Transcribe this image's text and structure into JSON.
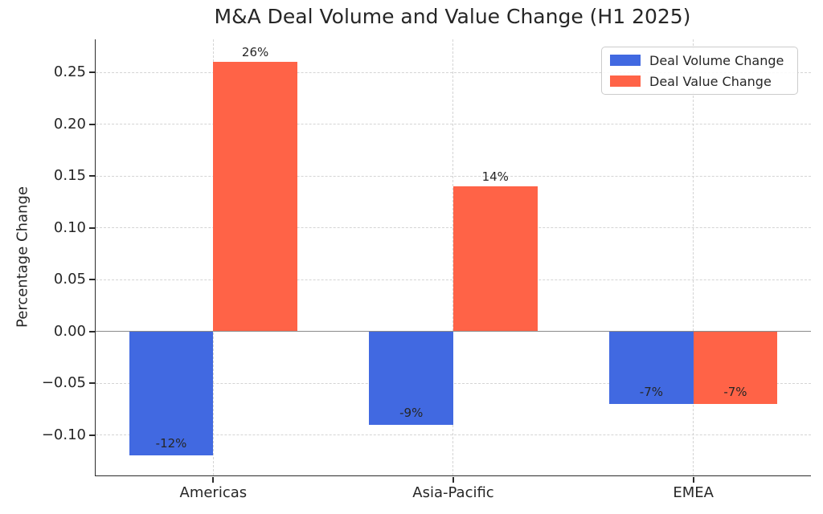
{
  "chart_data": {
    "type": "bar",
    "title": "M&A Deal Volume and Value Change (H1 2025)",
    "ylabel": "Percentage Change",
    "xlabel": "",
    "categories": [
      "Americas",
      "Asia-Pacific",
      "EMEA"
    ],
    "series": [
      {
        "name": "Deal Volume Change",
        "color": "#4169E1",
        "values": [
          -0.12,
          -0.09,
          -0.07
        ],
        "bar_labels": [
          "-12%",
          "-9%",
          "-7%"
        ]
      },
      {
        "name": "Deal Value Change",
        "color": "#FF6347",
        "values": [
          0.26,
          0.14,
          -0.07
        ],
        "bar_labels": [
          "26%",
          "14%",
          "-7%"
        ]
      }
    ],
    "yticks": {
      "values": [
        -0.1,
        -0.05,
        0,
        0.05,
        0.1,
        0.15,
        0.2,
        0.25
      ],
      "labels": [
        "−0.10",
        "−0.05",
        "0.00",
        "0.05",
        "0.10",
        "0.15",
        "0.20",
        "0.25"
      ]
    },
    "ylim": [
      -0.139,
      0.282
    ],
    "xlim": [
      -0.49,
      2.49
    ],
    "bar_width_ratio": 0.35,
    "grid": {
      "show": true,
      "style": "dashed",
      "axes": "both",
      "color": "#d4d4d4"
    },
    "zero_line_color": "#8a8a8a",
    "legend": {
      "position": "upper right"
    }
  }
}
